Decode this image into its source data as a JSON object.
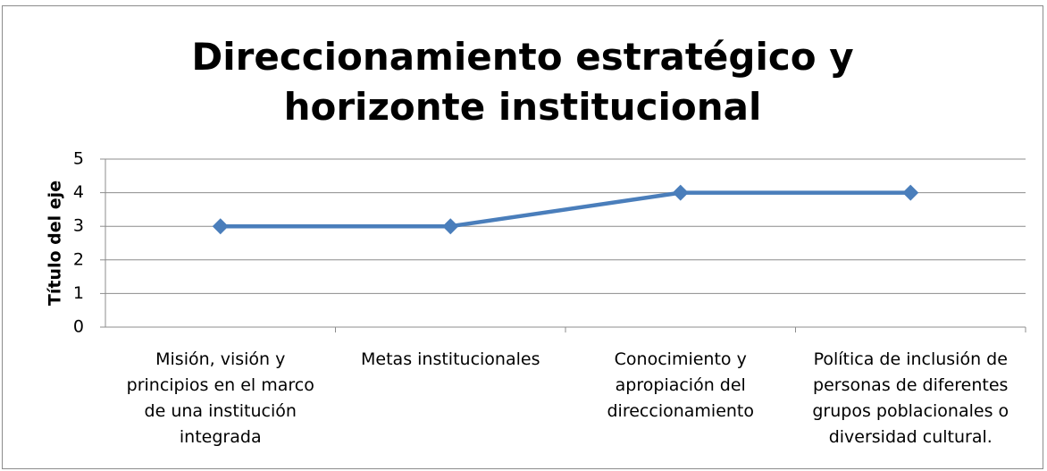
{
  "chart_data": {
    "type": "line",
    "title": "Direccionamiento estratégico y horizonte institucional",
    "y_label": "Título del eje",
    "categories": [
      "Misión, visión y principios en el marco de una institución integrada",
      "Metas institucionales",
      "Conocimiento y apropiación del direccionamiento",
      "Política de inclusión de personas de diferentes grupos poblacionales o diversidad cultural."
    ],
    "values": [
      3,
      3,
      4,
      4
    ],
    "color": "#4a7ebb",
    "ylim": [
      0,
      5
    ],
    "yticks": [
      0,
      1,
      2,
      3,
      4,
      5
    ],
    "grid": true
  }
}
